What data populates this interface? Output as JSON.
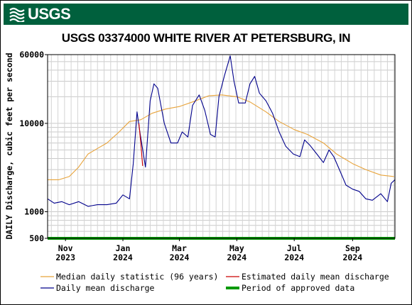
{
  "header": {
    "logo_text": "USGS",
    "brand_color": "#00603d"
  },
  "chart_data": {
    "type": "line",
    "title": "USGS 03374000 WHITE RIVER AT PETERSBURG, IN",
    "xlabel": "",
    "ylabel": "DAILY Discharge, cubic feet per second",
    "y_scale": "log",
    "ylim": [
      500,
      60000
    ],
    "xlim": [
      "2023-10-13",
      "2024-10-16"
    ],
    "y_ticks": [
      "60000",
      "10000",
      "1000",
      "500"
    ],
    "x_ticks": [
      {
        "month": "Nov",
        "year": "2023",
        "date": "2023-11-01"
      },
      {
        "month": "Jan",
        "year": "2024",
        "date": "2024-01-01"
      },
      {
        "month": "Mar",
        "year": "2024",
        "date": "2024-03-01"
      },
      {
        "month": "May",
        "year": "2024",
        "date": "2024-05-01"
      },
      {
        "month": "Jul",
        "year": "2024",
        "date": "2024-07-01"
      },
      {
        "month": "Sep",
        "year": "2024",
        "date": "2024-09-01"
      }
    ],
    "grid": true,
    "legend_position": "bottom",
    "series": [
      {
        "name": "Median daily statistic (96 years)",
        "color": "#e8a33a",
        "points": [
          [
            "2023-10-13",
            2300
          ],
          [
            "2023-10-25",
            2300
          ],
          [
            "2023-11-05",
            2500
          ],
          [
            "2023-11-15",
            3200
          ],
          [
            "2023-11-25",
            4500
          ],
          [
            "2023-12-05",
            5200
          ],
          [
            "2023-12-15",
            6000
          ],
          [
            "2023-12-28",
            8000
          ],
          [
            "2024-01-08",
            10500
          ],
          [
            "2024-01-20",
            11000
          ],
          [
            "2024-02-01",
            13000
          ],
          [
            "2024-02-15",
            14500
          ],
          [
            "2024-03-01",
            15500
          ],
          [
            "2024-03-15",
            17500
          ],
          [
            "2024-04-01",
            20500
          ],
          [
            "2024-04-15",
            21000
          ],
          [
            "2024-05-01",
            20000
          ],
          [
            "2024-05-15",
            17500
          ],
          [
            "2024-06-01",
            13500
          ],
          [
            "2024-06-15",
            10500
          ],
          [
            "2024-07-01",
            8500
          ],
          [
            "2024-07-15",
            7500
          ],
          [
            "2024-08-01",
            6000
          ],
          [
            "2024-08-15",
            4500
          ],
          [
            "2024-09-01",
            3500
          ],
          [
            "2024-09-15",
            3000
          ],
          [
            "2024-10-01",
            2600
          ],
          [
            "2024-10-15",
            2500
          ]
        ]
      },
      {
        "name": "Daily mean discharge",
        "color": "#00008b",
        "points": [
          [
            "2023-10-13",
            1400
          ],
          [
            "2023-10-20",
            1250
          ],
          [
            "2023-10-28",
            1300
          ],
          [
            "2023-11-05",
            1200
          ],
          [
            "2023-11-15",
            1300
          ],
          [
            "2023-11-25",
            1150
          ],
          [
            "2023-12-05",
            1200
          ],
          [
            "2023-12-15",
            1200
          ],
          [
            "2023-12-25",
            1250
          ],
          [
            "2024-01-01",
            1550
          ],
          [
            "2024-01-08",
            1400
          ],
          [
            "2024-01-12",
            3500
          ],
          [
            "2024-01-16",
            13500
          ],
          [
            "2024-01-19",
            8000
          ],
          [
            "2024-01-25",
            3200
          ],
          [
            "2024-01-30",
            18000
          ],
          [
            "2024-02-03",
            28000
          ],
          [
            "2024-02-07",
            25000
          ],
          [
            "2024-02-14",
            10000
          ],
          [
            "2024-02-21",
            6000
          ],
          [
            "2024-02-28",
            6000
          ],
          [
            "2024-03-04",
            8000
          ],
          [
            "2024-03-10",
            7000
          ],
          [
            "2024-03-15",
            16000
          ],
          [
            "2024-03-22",
            21000
          ],
          [
            "2024-03-28",
            14000
          ],
          [
            "2024-04-03",
            7500
          ],
          [
            "2024-04-08",
            7000
          ],
          [
            "2024-04-12",
            20000
          ],
          [
            "2024-04-18",
            35000
          ],
          [
            "2024-04-24",
            58000
          ],
          [
            "2024-04-28",
            30000
          ],
          [
            "2024-05-03",
            17000
          ],
          [
            "2024-05-10",
            17000
          ],
          [
            "2024-05-15",
            28000
          ],
          [
            "2024-05-20",
            34000
          ],
          [
            "2024-05-25",
            22000
          ],
          [
            "2024-06-01",
            18000
          ],
          [
            "2024-06-08",
            13000
          ],
          [
            "2024-06-15",
            8000
          ],
          [
            "2024-06-22",
            5500
          ],
          [
            "2024-06-30",
            4500
          ],
          [
            "2024-07-07",
            4200
          ],
          [
            "2024-07-12",
            6500
          ],
          [
            "2024-07-18",
            5600
          ],
          [
            "2024-07-25",
            4500
          ],
          [
            "2024-08-01",
            3600
          ],
          [
            "2024-08-07",
            5000
          ],
          [
            "2024-08-12",
            4200
          ],
          [
            "2024-08-18",
            3000
          ],
          [
            "2024-08-25",
            2000
          ],
          [
            "2024-09-01",
            1800
          ],
          [
            "2024-09-08",
            1700
          ],
          [
            "2024-09-15",
            1400
          ],
          [
            "2024-09-22",
            1350
          ],
          [
            "2024-10-01",
            1600
          ],
          [
            "2024-10-08",
            1300
          ],
          [
            "2024-10-12",
            2100
          ],
          [
            "2024-10-16",
            2300
          ]
        ]
      },
      {
        "name": "Estimated daily mean discharge",
        "color": "#cc0000",
        "points": [
          [
            "2024-01-18",
            10000
          ],
          [
            "2024-01-20",
            6000
          ],
          [
            "2024-01-22",
            3300
          ]
        ]
      },
      {
        "name": "Period of approved data",
        "color": "#009900",
        "points": [
          [
            "2023-10-13",
            500
          ],
          [
            "2024-10-16",
            500
          ]
        ]
      }
    ]
  }
}
